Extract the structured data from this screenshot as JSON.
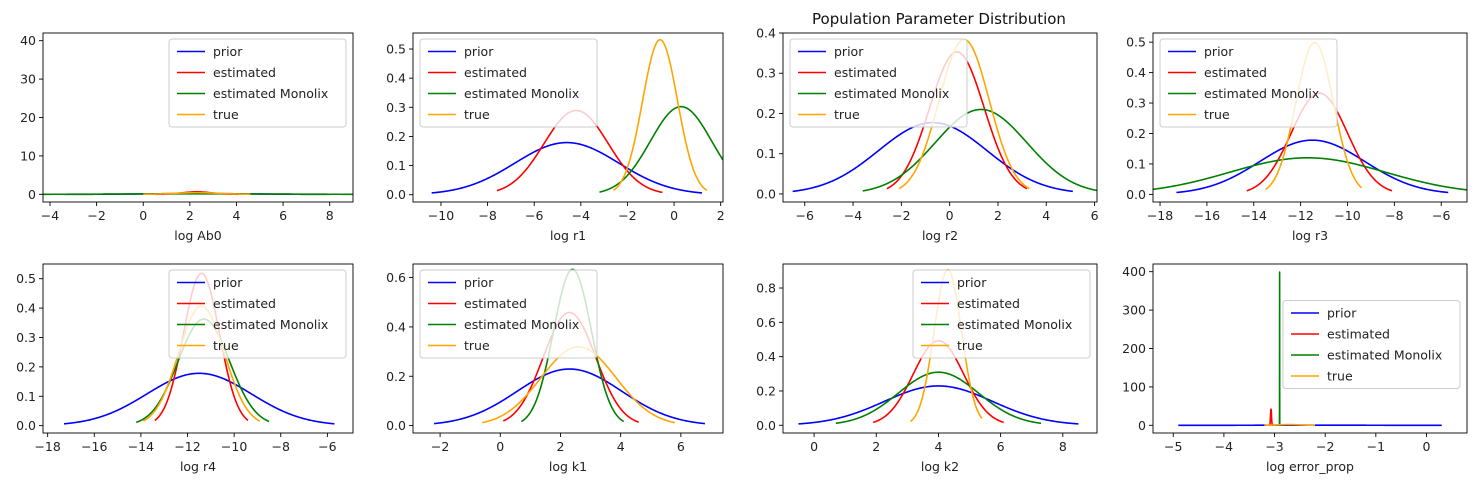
{
  "figure": {
    "title": "Population Parameter Distribution"
  },
  "legend_labels": [
    "prior",
    "estimated",
    "estimated Monolix",
    "true"
  ],
  "colors": {
    "prior": "#0000ff",
    "estimated": "#ff0000",
    "estimated Monolix": "#008000",
    "true": "#ffa500"
  },
  "chart_data": [
    {
      "type": "line",
      "xlabel": "log Ab0",
      "xlim": [
        -4.3,
        9.0
      ],
      "ylim": [
        -2.0,
        42.0
      ],
      "xticks": [
        -4,
        -2,
        0,
        2,
        4,
        6,
        8
      ],
      "yticks": [
        0,
        10,
        20,
        30,
        40
      ],
      "ytick_labels": [
        "0",
        "10",
        "20",
        "30",
        "40"
      ],
      "legend": "upper-right",
      "series": [
        {
          "name": "prior",
          "mean": 2.3,
          "sd": 1.9,
          "range": [
            -3.4,
            8.0
          ]
        },
        {
          "name": "estimated",
          "mean": 2.3,
          "sd": 0.6,
          "range": [
            0.5,
            4.1
          ]
        },
        {
          "name": "estimated Monolix",
          "mean": 2.3,
          "sd": 2.9,
          "range": [
            -4.3,
            9.0
          ]
        },
        {
          "name": "true",
          "mean": 2.3,
          "sd": 0.9,
          "range": [
            0.0,
            4.6
          ]
        }
      ]
    },
    {
      "type": "line",
      "xlabel": "log r1",
      "xlim": [
        -11.2,
        2.1
      ],
      "ylim": [
        -0.025,
        0.555
      ],
      "xticks": [
        -10,
        -8,
        -6,
        -4,
        -2,
        0,
        2
      ],
      "yticks": [
        0.0,
        0.1,
        0.2,
        0.3,
        0.4,
        0.5
      ],
      "ytick_labels": [
        "0.0",
        "0.1",
        "0.2",
        "0.3",
        "0.4",
        "0.5"
      ],
      "legend": "upper-left",
      "series": [
        {
          "name": "prior",
          "mean": -4.6,
          "sd": 2.23,
          "range": [
            -10.4,
            1.2
          ]
        },
        {
          "name": "estimated",
          "mean": -4.2,
          "sd": 1.38,
          "range": [
            -7.6,
            -0.5
          ]
        },
        {
          "name": "estimated Monolix",
          "mean": 0.3,
          "sd": 1.32,
          "range": [
            -3.2,
            2.1
          ]
        },
        {
          "name": "true",
          "mean": -0.6,
          "sd": 0.75,
          "range": [
            -2.6,
            1.4
          ]
        }
      ]
    },
    {
      "type": "line",
      "xlabel": "log r2",
      "xlim": [
        -6.9,
        6.1
      ],
      "ylim": [
        -0.02,
        0.4
      ],
      "xticks": [
        -6,
        -4,
        -2,
        0,
        2,
        4,
        6
      ],
      "yticks": [
        0.0,
        0.1,
        0.2,
        0.3,
        0.4
      ],
      "ytick_labels": [
        "0.0",
        "0.1",
        "0.2",
        "0.3",
        "0.4"
      ],
      "legend": "upper-left",
      "series": [
        {
          "name": "prior",
          "mean": -0.7,
          "sd": 2.25,
          "range": [
            -6.5,
            5.1
          ]
        },
        {
          "name": "estimated",
          "mean": 0.3,
          "sd": 1.13,
          "range": [
            -2.6,
            3.2
          ]
        },
        {
          "name": "estimated Monolix",
          "mean": 1.3,
          "sd": 1.9,
          "range": [
            -3.6,
            6.1
          ]
        },
        {
          "name": "true",
          "mean": 0.6,
          "sd": 1.04,
          "range": [
            -2.1,
            3.3
          ]
        }
      ]
    },
    {
      "type": "line",
      "xlabel": "log r3",
      "xlim": [
        -18.3,
        -4.9
      ],
      "ylim": [
        -0.025,
        0.53
      ],
      "xticks": [
        -18,
        -16,
        -14,
        -12,
        -10,
        -8,
        -6
      ],
      "yticks": [
        0.0,
        0.1,
        0.2,
        0.3,
        0.4,
        0.5
      ],
      "ytick_labels": [
        "0.0",
        "0.1",
        "0.2",
        "0.3",
        "0.4",
        "0.5"
      ],
      "legend": "upper-left",
      "series": [
        {
          "name": "prior",
          "mean": -11.5,
          "sd": 2.24,
          "range": [
            -17.3,
            -5.7
          ]
        },
        {
          "name": "estimated",
          "mean": -11.2,
          "sd": 1.2,
          "range": [
            -14.3,
            -8.1
          ]
        },
        {
          "name": "estimated Monolix",
          "mean": -11.7,
          "sd": 3.32,
          "range": [
            -18.3,
            -4.9
          ]
        },
        {
          "name": "true",
          "mean": -11.4,
          "sd": 0.8,
          "range": [
            -13.5,
            -9.4
          ]
        }
      ]
    },
    {
      "type": "line",
      "xlabel": "log r4",
      "xlim": [
        -18.2,
        -4.9
      ],
      "ylim": [
        -0.025,
        0.55
      ],
      "xticks": [
        -18,
        -16,
        -14,
        -12,
        -10,
        -8,
        -6
      ],
      "yticks": [
        0.0,
        0.1,
        0.2,
        0.3,
        0.4,
        0.5
      ],
      "ytick_labels": [
        "0.0",
        "0.1",
        "0.2",
        "0.3",
        "0.4",
        "0.5"
      ],
      "legend": "upper-right",
      "series": [
        {
          "name": "prior",
          "mean": -11.5,
          "sd": 2.24,
          "range": [
            -17.3,
            -5.7
          ]
        },
        {
          "name": "estimated",
          "mean": -11.4,
          "sd": 0.77,
          "range": [
            -13.4,
            -9.4
          ]
        },
        {
          "name": "estimated Monolix",
          "mean": -11.3,
          "sd": 1.1,
          "range": [
            -14.2,
            -8.5
          ]
        },
        {
          "name": "true",
          "mean": -11.4,
          "sd": 0.98,
          "range": [
            -13.9,
            -8.9
          ]
        }
      ]
    },
    {
      "type": "line",
      "xlabel": "log k1",
      "xlim": [
        -2.9,
        7.4
      ],
      "ylim": [
        -0.03,
        0.655
      ],
      "xticks": [
        -2,
        0,
        2,
        4,
        6
      ],
      "yticks": [
        0.0,
        0.2,
        0.4,
        0.6
      ],
      "ytick_labels": [
        "0.0",
        "0.2",
        "0.4",
        "0.6"
      ],
      "legend": "upper-left",
      "series": [
        {
          "name": "prior",
          "mean": 2.3,
          "sd": 1.74,
          "range": [
            -2.2,
            6.8
          ]
        },
        {
          "name": "estimated",
          "mean": 2.3,
          "sd": 0.87,
          "range": [
            0.1,
            4.6
          ]
        },
        {
          "name": "estimated Monolix",
          "mean": 2.4,
          "sd": 0.63,
          "range": [
            0.7,
            4.1
          ]
        },
        {
          "name": "true",
          "mean": 2.6,
          "sd": 1.25,
          "range": [
            -0.6,
            5.8
          ]
        }
      ]
    },
    {
      "type": "line",
      "xlabel": "log k2",
      "xlim": [
        -1.0,
        9.1
      ],
      "ylim": [
        -0.045,
        0.94
      ],
      "xticks": [
        0,
        2,
        4,
        6,
        8
      ],
      "yticks": [
        0.0,
        0.2,
        0.4,
        0.6,
        0.8
      ],
      "ytick_labels": [
        "0.0",
        "0.2",
        "0.4",
        "0.6",
        "0.8"
      ],
      "legend": "upper-right",
      "series": [
        {
          "name": "prior",
          "mean": 4.0,
          "sd": 1.74,
          "range": [
            -0.5,
            8.5
          ]
        },
        {
          "name": "estimated",
          "mean": 4.0,
          "sd": 0.81,
          "range": [
            1.9,
            6.1
          ]
        },
        {
          "name": "estimated Monolix",
          "mean": 4.0,
          "sd": 1.29,
          "range": [
            0.7,
            7.3
          ]
        },
        {
          "name": "true",
          "mean": 4.3,
          "sd": 0.44,
          "range": [
            3.1,
            5.4
          ]
        }
      ]
    },
    {
      "type": "line",
      "xlabel": "log error_prop",
      "xlim": [
        -5.4,
        0.8
      ],
      "ylim": [
        -20,
        420
      ],
      "xticks": [
        -5,
        -4,
        -3,
        -2,
        -1,
        0
      ],
      "yticks": [
        0,
        100,
        200,
        300,
        400
      ],
      "ytick_labels": [
        "0",
        "100",
        "200",
        "300",
        "400"
      ],
      "legend": "center-right",
      "series": [
        {
          "name": "prior",
          "mean": -2.3,
          "sd": 1.0,
          "range": [
            -4.9,
            0.3
          ]
        },
        {
          "name": "estimated",
          "mean": -3.07,
          "sd": 0.0095,
          "range": [
            -3.11,
            -3.03
          ]
        },
        {
          "name": "estimated Monolix",
          "mean": -2.9,
          "sd": 0.001,
          "range": [
            -2.904,
            -2.896
          ]
        },
        {
          "name": "true",
          "mean": -2.7,
          "sd": 0.2,
          "range": [
            -3.2,
            -2.2
          ]
        }
      ]
    }
  ]
}
